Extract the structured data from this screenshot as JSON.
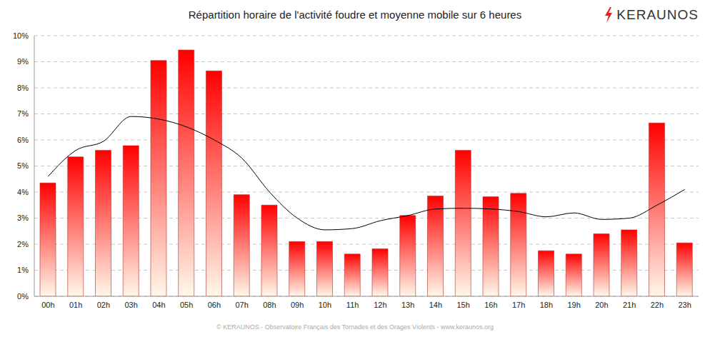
{
  "chart_data": {
    "type": "bar",
    "title": "Répartition horaire de l'activité foudre et moyenne mobile sur 6 heures",
    "annotations": [
      "KERAUNOS",
      "© KERAUNOS - Observatoire Français des Tornades et des Orages Violents - www.keraunos.org"
    ],
    "categories": [
      "00h",
      "01h",
      "02h",
      "03h",
      "04h",
      "05h",
      "06h",
      "07h",
      "08h",
      "09h",
      "10h",
      "11h",
      "12h",
      "13h",
      "14h",
      "15h",
      "16h",
      "17h",
      "18h",
      "19h",
      "20h",
      "21h",
      "22h",
      "23h"
    ],
    "series": [
      {
        "type": "bar",
        "color": "#ff0000",
        "values": [
          4.35,
          5.35,
          5.6,
          5.78,
          9.05,
          9.45,
          8.65,
          3.9,
          3.5,
          2.1,
          2.1,
          1.62,
          1.82,
          3.1,
          3.85,
          5.6,
          3.82,
          3.95,
          1.75,
          1.62,
          2.4,
          2.55,
          6.65,
          2.05
        ]
      },
      {
        "type": "line",
        "color": "#000000",
        "values": [
          4.6,
          5.6,
          5.95,
          6.9,
          6.8,
          6.5,
          6.0,
          5.3,
          4.0,
          3.0,
          2.55,
          2.6,
          2.9,
          3.1,
          3.35,
          3.38,
          3.35,
          3.25,
          3.05,
          3.2,
          2.95,
          3.0,
          3.5,
          4.1
        ]
      }
    ],
    "ylim": [
      0,
      10
    ],
    "yticks": [
      {
        "value": 0,
        "label": "0%"
      },
      {
        "value": 1,
        "label": "1%"
      },
      {
        "value": 2,
        "label": "2%"
      },
      {
        "value": 3,
        "label": "3%"
      },
      {
        "value": 4,
        "label": "4%"
      },
      {
        "value": 5,
        "label": "5%"
      },
      {
        "value": 6,
        "label": "6%"
      },
      {
        "value": 7,
        "label": "7%"
      },
      {
        "value": 8,
        "label": "8%"
      },
      {
        "value": 9,
        "label": "9%"
      },
      {
        "value": 10,
        "label": "10%"
      }
    ],
    "grid": true
  }
}
